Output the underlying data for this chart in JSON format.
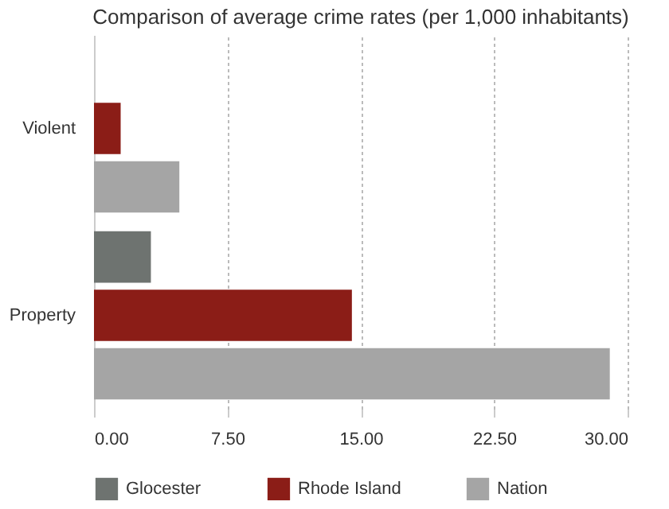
{
  "chart_data": {
    "type": "bar",
    "orientation": "horizontal",
    "title": "Comparison of average crime rates (per 1,000 inhabitants)",
    "categories": [
      "Violent",
      "Property"
    ],
    "series": [
      {
        "name": "Glocester",
        "color": "#6e7370",
        "values": [
          null,
          3.2
        ]
      },
      {
        "name": "Rhode Island",
        "color": "#8b1d17",
        "values": [
          1.5,
          14.5
        ]
      },
      {
        "name": "Nation",
        "color": "#a5a5a5",
        "values": [
          4.8,
          29.0
        ]
      }
    ],
    "xlim": [
      0,
      30
    ],
    "xticks": [
      {
        "value": 0,
        "label": "0.00"
      },
      {
        "value": 7.5,
        "label": "7.50"
      },
      {
        "value": 15,
        "label": "15.00"
      },
      {
        "value": 22.5,
        "label": "22.50"
      },
      {
        "value": 30,
        "label": "30.00"
      }
    ],
    "grid": "x",
    "legend": "bottom"
  }
}
